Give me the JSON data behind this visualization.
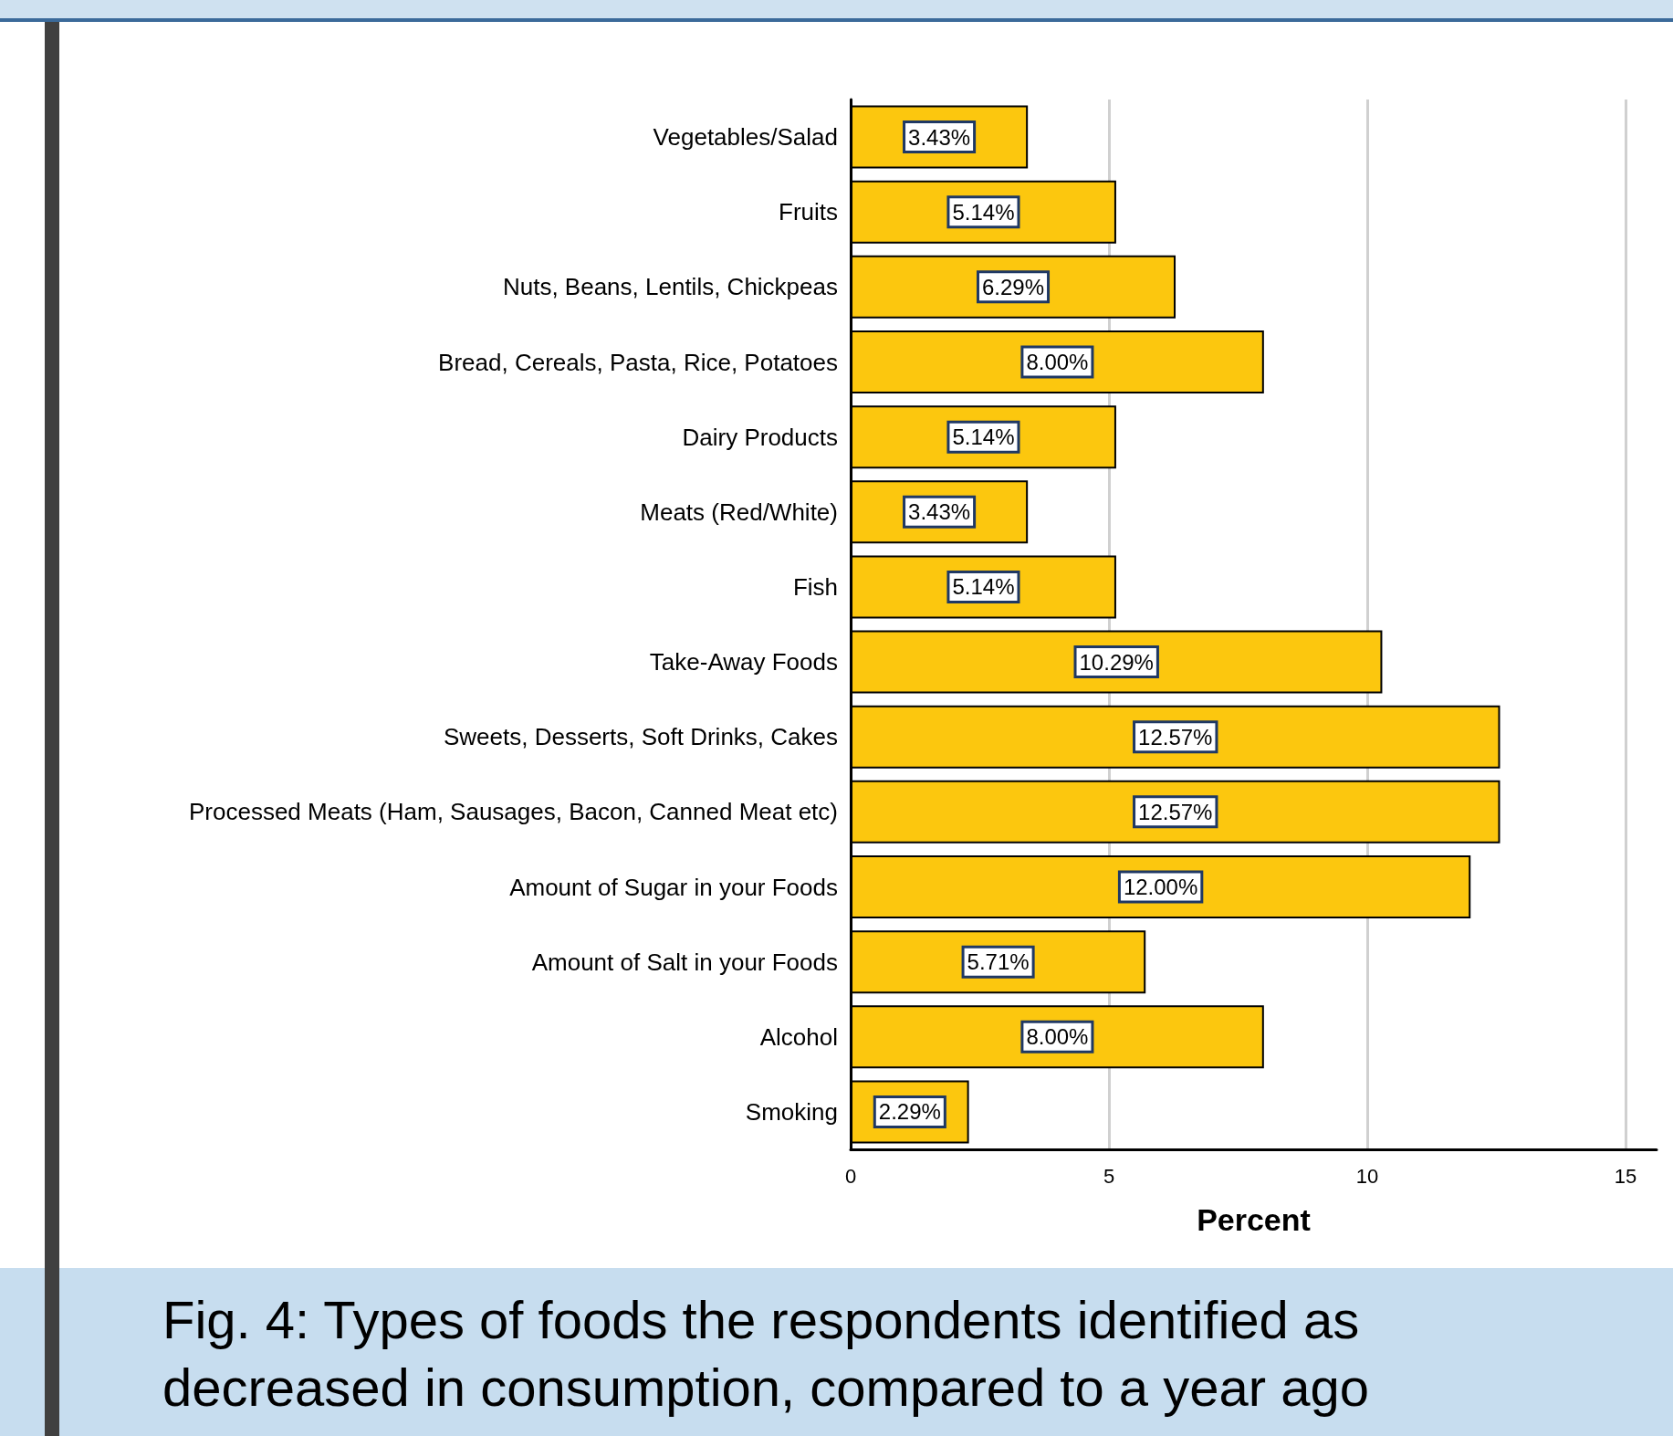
{
  "chart_data": {
    "type": "bar",
    "orientation": "horizontal",
    "categories": [
      "Vegetables/Salad",
      "Fruits",
      "Nuts, Beans, Lentils, Chickpeas",
      "Bread, Cereals, Pasta, Rice, Potatoes",
      "Dairy Products",
      "Meats (Red/White)",
      "Fish",
      "Take-Away Foods",
      "Sweets, Desserts, Soft Drinks, Cakes",
      "Processed Meats (Ham, Sausages, Bacon, Canned Meat etc)",
      "Amount of Sugar in your Foods",
      "Amount of Salt in your Foods",
      "Alcohol",
      "Smoking"
    ],
    "values": [
      3.43,
      5.14,
      6.29,
      8.0,
      5.14,
      3.43,
      5.14,
      10.29,
      12.57,
      12.57,
      12.0,
      5.71,
      8.0,
      2.29
    ],
    "value_labels": [
      "3.43%",
      "5.14%",
      "6.29%",
      "8.00%",
      "5.14%",
      "3.43%",
      "5.14%",
      "10.29%",
      "12.57%",
      "12.57%",
      "12.00%",
      "5.71%",
      "8.00%",
      "2.29%"
    ],
    "color": "#fcc70e",
    "xlabel": "Percent",
    "xlim": [
      0,
      15.6
    ],
    "xticks": [
      0,
      5,
      10,
      15
    ],
    "grid": "x",
    "annotations": [
      "Fig. 4: Types of foods the respondents identified as decreased in consumption, compared to a year ago"
    ]
  }
}
